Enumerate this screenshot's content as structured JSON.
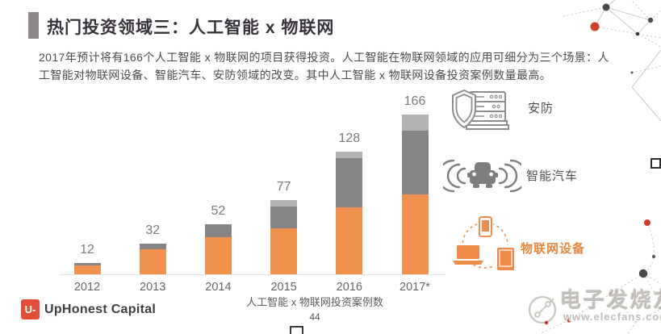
{
  "slide": {
    "title": "热门投资领域三：人工智能 x 物联网",
    "body": "2017年预计将有166个人工智能 x 物联网的项目获得投资。人工智能在物联网领域的应用可细分为三个场景：人工智能对物联网设备、智能汽车、安防领域的改变。其中人工智能 x 物联网设备投资案例数量最高。",
    "page_number": "44"
  },
  "chart_data": {
    "type": "bar",
    "stacked": true,
    "title": "人工智能 x 物联网投资案例数",
    "categories": [
      "2012",
      "2013",
      "2014",
      "2015",
      "2016",
      "2017*"
    ],
    "totals": [
      12,
      32,
      52,
      77,
      128,
      166
    ],
    "series": [
      {
        "name": "物联网设备",
        "color": "#F0914D",
        "values": [
          9,
          26,
          39,
          48,
          70,
          83
        ]
      },
      {
        "name": "智能汽车",
        "color": "#868486",
        "values": [
          3,
          6,
          13,
          23,
          51,
          67
        ]
      },
      {
        "name": "安防",
        "color": "#B3B2B3",
        "values": [
          0,
          0,
          0,
          6,
          7,
          16
        ]
      }
    ],
    "xlabel": "",
    "ylabel": "",
    "ylim": [
      0,
      180
    ],
    "grid": false,
    "legend_position": "right",
    "value_labels": true
  },
  "legend": {
    "items": [
      {
        "label": "安防",
        "icon": "shield-server-icon",
        "color": "#4E4D4E"
      },
      {
        "label": "智能汽车",
        "icon": "connected-car-icon",
        "color": "#4E4D4E"
      },
      {
        "label": "物联网设备",
        "icon": "iot-devices-icon",
        "color": "#E8873F"
      }
    ]
  },
  "footer": {
    "brand": "UpHonest Capital",
    "logo_text": "U-"
  },
  "watermark": {
    "line1": "电子发烧友",
    "line2": "www.elecfans.com"
  },
  "colors": {
    "accent_bar": "#8C8589",
    "orange": "#F0914D",
    "dark_gray_segment": "#868486",
    "light_gray_segment": "#B3B2B3",
    "brand_red": "#E14F39",
    "decor_red": "#CC3D28"
  }
}
